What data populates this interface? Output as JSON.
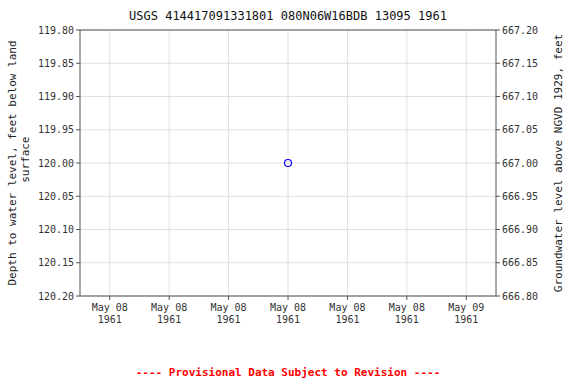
{
  "chart_data": {
    "type": "scatter",
    "title": "USGS 414417091331801 080N06W16BDB  13095 1961",
    "y_label": "Depth to water level, feet below land\n surface",
    "y2_label": "Groundwater level above NGVD 1929, feet",
    "categories": [
      "May 08\n1961",
      "May 08\n1961",
      "May 08\n1961",
      "May 08\n1961",
      "May 08\n1961",
      "May 08\n1961",
      "May 09\n1961"
    ],
    "series": [
      {
        "color": "blue",
        "marker": "circle",
        "line_style": "none",
        "values": [
          null,
          null,
          null,
          120.0,
          null,
          null,
          null
        ]
      }
    ],
    "ylim": [
      120.2,
      119.8
    ],
    "yticks": [
      {
        "value": 119.8,
        "label": "119.80"
      },
      {
        "value": 119.85,
        "label": "119.85"
      },
      {
        "value": 119.9,
        "label": "119.90"
      },
      {
        "value": 119.95,
        "label": "119.95"
      },
      {
        "value": 120.0,
        "label": "120.00"
      },
      {
        "value": 120.05,
        "label": "120.05"
      },
      {
        "value": 120.1,
        "label": "120.10"
      },
      {
        "value": 120.15,
        "label": "120.15"
      },
      {
        "value": 120.2,
        "label": "120.20"
      }
    ],
    "y2lim": [
      666.8,
      667.2
    ],
    "y2ticks": [
      {
        "value": 667.2,
        "label": "667.20"
      },
      {
        "value": 667.15,
        "label": "667.15"
      },
      {
        "value": 667.1,
        "label": "667.10"
      },
      {
        "value": 667.05,
        "label": "667.05"
      },
      {
        "value": 667.0,
        "label": "667.00"
      },
      {
        "value": 666.95,
        "label": "666.95"
      },
      {
        "value": 666.9,
        "label": "666.90"
      },
      {
        "value": 666.85,
        "label": "666.85"
      },
      {
        "value": 666.8,
        "label": "666.80"
      }
    ],
    "grid": true,
    "annotations": [
      {
        "text": "---- Provisional Data Subject to Revision ----",
        "color": "red"
      }
    ]
  }
}
